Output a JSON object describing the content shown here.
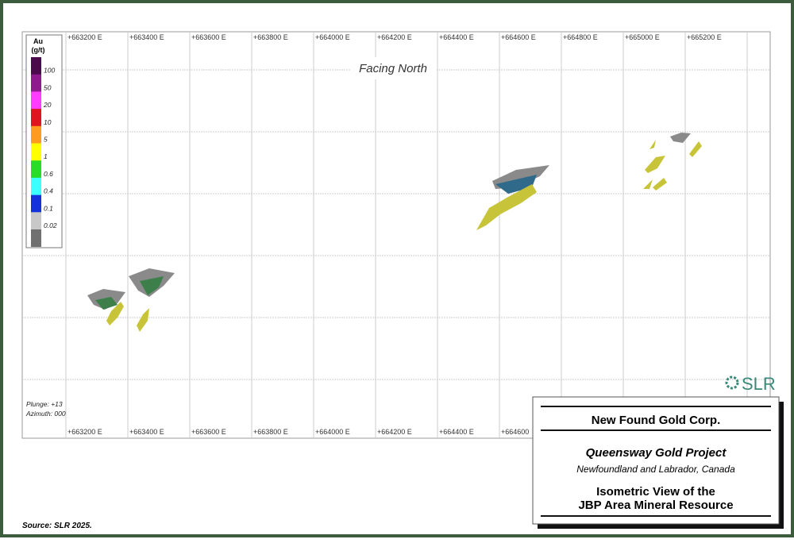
{
  "view": "Facing North",
  "orientation": {
    "plunge": "Plunge: +13",
    "azimuth": "Azimuth: 000"
  },
  "grid": {
    "top_labels": [
      "+663200 E",
      "+663400 E",
      "+663600 E",
      "+663800 E",
      "+664000 E",
      "+664200 E",
      "+664400 E",
      "+664600 E",
      "+664800 E",
      "+665000 E",
      "+665200 E"
    ],
    "bottom_labels": [
      "+663200 E",
      "+663400 E",
      "+663600 E",
      "+663800 E",
      "+664000 E",
      "+664200 E",
      "+664400 E",
      "+664600"
    ]
  },
  "legend": {
    "title": [
      "Au",
      "(g/t)"
    ],
    "labels": [
      "100",
      "50",
      "20",
      "10",
      "5",
      "1",
      "0.6",
      "0.4",
      "0.1",
      "0.02"
    ],
    "colors": [
      "#4b0a4b",
      "#8e1a8e",
      "#ff3cff",
      "#e0141e",
      "#ff9b1e",
      "#ffff00",
      "#28dc28",
      "#3cffff",
      "#1432dc",
      "#c8c8c8",
      "#707070"
    ]
  },
  "logo": "SLR",
  "title_block": {
    "company": "New Found Gold Corp.",
    "project": "Queensway Gold Project",
    "location": "Newfoundland and Labrador, Canada",
    "figure_title": [
      "Isometric View of the",
      "JBP Area Mineral Resource"
    ]
  },
  "source": "Source: SLR 2025."
}
